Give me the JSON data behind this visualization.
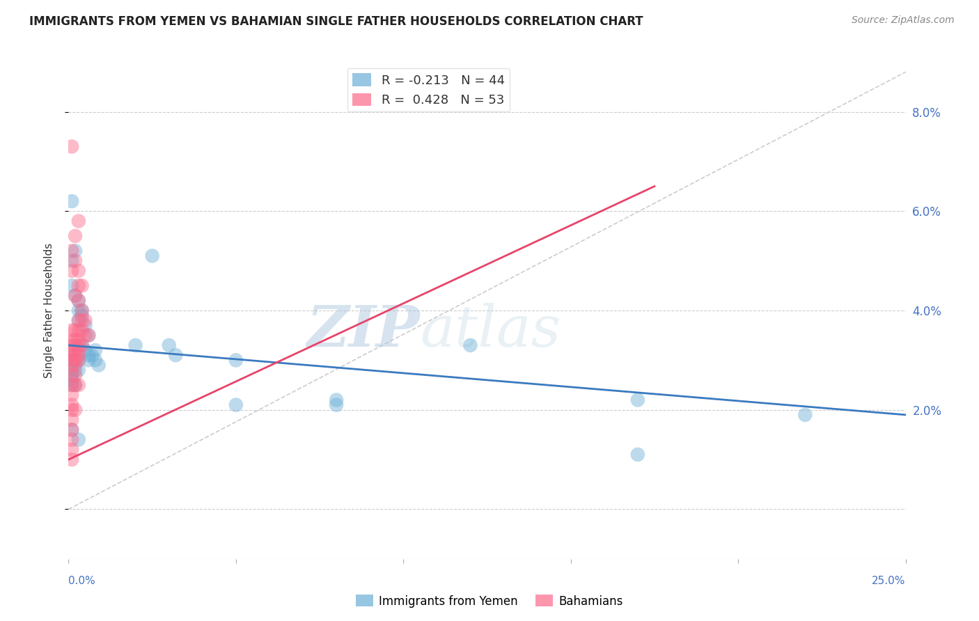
{
  "title": "IMMIGRANTS FROM YEMEN VS BAHAMIAN SINGLE FATHER HOUSEHOLDS CORRELATION CHART",
  "source": "Source: ZipAtlas.com",
  "ylabel": "Single Father Households",
  "legend1_label": "R = -0.213   N = 44",
  "legend2_label": "R =  0.428   N = 53",
  "legend1_color": "#6baed6",
  "legend2_color": "#fb6a8a",
  "watermark_zip": "ZIP",
  "watermark_atlas": "atlas",
  "xlim": [
    0.0,
    0.25
  ],
  "ylim": [
    -0.01,
    0.09
  ],
  "yticks": [
    0.0,
    0.02,
    0.04,
    0.06,
    0.08
  ],
  "yticklabels": [
    "",
    "2.0%",
    "4.0%",
    "6.0%",
    "8.0%"
  ],
  "blue_scatter": [
    [
      0.001,
      0.062
    ],
    [
      0.002,
      0.052
    ],
    [
      0.001,
      0.05
    ],
    [
      0.001,
      0.045
    ],
    [
      0.002,
      0.043
    ],
    [
      0.003,
      0.042
    ],
    [
      0.003,
      0.04
    ],
    [
      0.003,
      0.038
    ],
    [
      0.004,
      0.04
    ],
    [
      0.004,
      0.039
    ],
    [
      0.005,
      0.037
    ],
    [
      0.006,
      0.035
    ],
    [
      0.004,
      0.033
    ],
    [
      0.005,
      0.032
    ],
    [
      0.006,
      0.031
    ],
    [
      0.001,
      0.03
    ],
    [
      0.002,
      0.03
    ],
    [
      0.003,
      0.03
    ],
    [
      0.006,
      0.03
    ],
    [
      0.007,
      0.031
    ],
    [
      0.008,
      0.032
    ],
    [
      0.008,
      0.03
    ],
    [
      0.009,
      0.029
    ],
    [
      0.001,
      0.028
    ],
    [
      0.002,
      0.028
    ],
    [
      0.003,
      0.028
    ],
    [
      0.001,
      0.027
    ],
    [
      0.001,
      0.026
    ],
    [
      0.002,
      0.025
    ],
    [
      0.001,
      0.025
    ],
    [
      0.02,
      0.033
    ],
    [
      0.025,
      0.051
    ],
    [
      0.03,
      0.033
    ],
    [
      0.032,
      0.031
    ],
    [
      0.05,
      0.03
    ],
    [
      0.05,
      0.021
    ],
    [
      0.08,
      0.021
    ],
    [
      0.08,
      0.022
    ],
    [
      0.12,
      0.033
    ],
    [
      0.17,
      0.022
    ],
    [
      0.22,
      0.019
    ],
    [
      0.001,
      0.016
    ],
    [
      0.003,
      0.014
    ],
    [
      0.17,
      0.011
    ]
  ],
  "pink_scatter": [
    [
      0.001,
      0.073
    ],
    [
      0.003,
      0.058
    ],
    [
      0.002,
      0.055
    ],
    [
      0.001,
      0.052
    ],
    [
      0.002,
      0.05
    ],
    [
      0.001,
      0.048
    ],
    [
      0.003,
      0.048
    ],
    [
      0.003,
      0.045
    ],
    [
      0.004,
      0.045
    ],
    [
      0.002,
      0.043
    ],
    [
      0.003,
      0.042
    ],
    [
      0.004,
      0.04
    ],
    [
      0.003,
      0.038
    ],
    [
      0.004,
      0.038
    ],
    [
      0.005,
      0.038
    ],
    [
      0.001,
      0.036
    ],
    [
      0.002,
      0.036
    ],
    [
      0.003,
      0.036
    ],
    [
      0.004,
      0.036
    ],
    [
      0.005,
      0.035
    ],
    [
      0.006,
      0.035
    ],
    [
      0.001,
      0.034
    ],
    [
      0.002,
      0.034
    ],
    [
      0.003,
      0.034
    ],
    [
      0.001,
      0.033
    ],
    [
      0.002,
      0.033
    ],
    [
      0.003,
      0.033
    ],
    [
      0.004,
      0.033
    ],
    [
      0.001,
      0.032
    ],
    [
      0.002,
      0.032
    ],
    [
      0.003,
      0.032
    ],
    [
      0.001,
      0.031
    ],
    [
      0.002,
      0.031
    ],
    [
      0.003,
      0.031
    ],
    [
      0.001,
      0.03
    ],
    [
      0.002,
      0.03
    ],
    [
      0.003,
      0.03
    ],
    [
      0.001,
      0.029
    ],
    [
      0.002,
      0.029
    ],
    [
      0.001,
      0.027
    ],
    [
      0.002,
      0.027
    ],
    [
      0.001,
      0.025
    ],
    [
      0.002,
      0.025
    ],
    [
      0.003,
      0.025
    ],
    [
      0.001,
      0.023
    ],
    [
      0.001,
      0.021
    ],
    [
      0.001,
      0.02
    ],
    [
      0.002,
      0.02
    ],
    [
      0.001,
      0.018
    ],
    [
      0.001,
      0.016
    ],
    [
      0.001,
      0.014
    ],
    [
      0.001,
      0.012
    ],
    [
      0.001,
      0.01
    ]
  ],
  "blue_line_x": [
    0.0,
    0.25
  ],
  "blue_line_y": [
    0.033,
    0.019
  ],
  "pink_line_x": [
    0.0,
    0.175
  ],
  "pink_line_y": [
    0.01,
    0.065
  ],
  "diag_line_x": [
    0.0,
    0.25
  ],
  "diag_line_y": [
    0.0,
    0.088
  ]
}
